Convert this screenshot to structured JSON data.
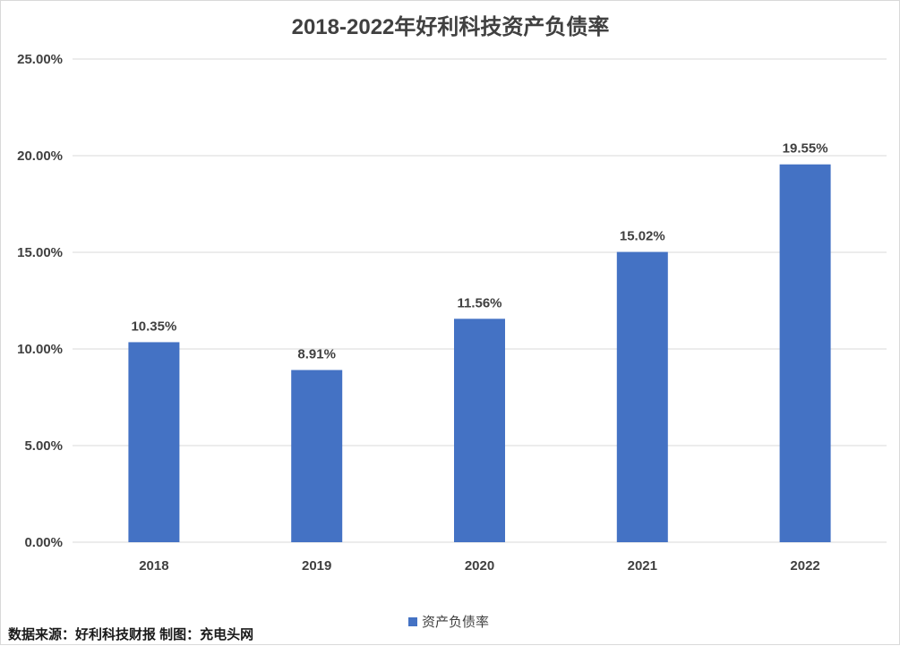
{
  "chart_data": {
    "type": "bar",
    "title": "2018-2022年好利科技资产负债率",
    "categories": [
      "2018",
      "2019",
      "2020",
      "2021",
      "2022"
    ],
    "series": [
      {
        "name": "资产负债率",
        "values": [
          10.35,
          8.91,
          11.56,
          15.02,
          19.55
        ],
        "value_labels": [
          "10.35%",
          "8.91%",
          "11.56%",
          "15.02%",
          "19.55%"
        ],
        "color": "#4472C4"
      }
    ],
    "ylim": [
      0,
      25
    ],
    "yticks": [
      0,
      5,
      10,
      15,
      20,
      25
    ],
    "ytick_labels": [
      "0.00%",
      "5.00%",
      "10.00%",
      "15.00%",
      "20.00%",
      "25.00%"
    ],
    "grid": true,
    "legend": "bottom-center"
  },
  "footer": {
    "source": "数据来源：好利科技财报  制图：充电头网"
  }
}
